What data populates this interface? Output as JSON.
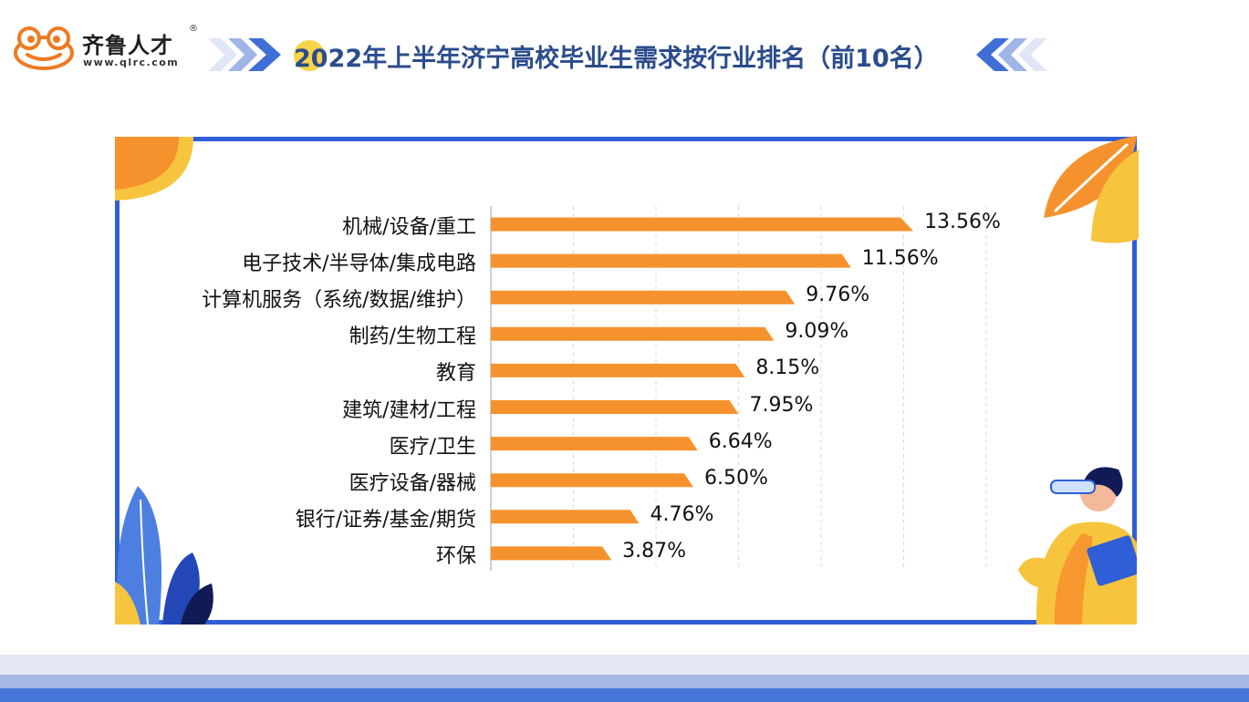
{
  "brand": {
    "name": "齐鲁人才",
    "registered_mark": "®",
    "url": "www.qlrc.com"
  },
  "colors": {
    "bar": "#f6922d",
    "frame": "#2f5fd6",
    "title": "#2b4c8c",
    "accent_yellow": "#f7d44c"
  },
  "icons": [
    "frog-logo-icon",
    "chevron-right-icon",
    "chevron-left-icon",
    "sun-icon",
    "leaf-icon",
    "plant-icon",
    "person-with-binoculars-icon"
  ],
  "chart_data": {
    "type": "bar",
    "orientation": "horizontal",
    "title": "2022年上半年济宁高校毕业生需求按行业排名（前10名）",
    "categories": [
      "机械/设备/重工",
      "电子技术/半导体/集成电路",
      "计算机服务（系统/数据/维护）",
      "制药/生物工程",
      "教育",
      "建筑/建材/工程",
      "医疗/卫生",
      "医疗设备/器械",
      "银行/证券/基金/期货",
      "环保"
    ],
    "values": [
      13.56,
      11.56,
      9.76,
      9.09,
      8.15,
      7.95,
      6.64,
      6.5,
      4.76,
      3.87
    ],
    "value_labels": [
      "13.56%",
      "11.56%",
      "9.76%",
      "9.09%",
      "8.15%",
      "7.95%",
      "6.64%",
      "6.50%",
      "4.76%",
      "3.87%"
    ],
    "xlim": [
      0,
      20
    ],
    "grid": true,
    "grid_style": "dashed vertical"
  }
}
